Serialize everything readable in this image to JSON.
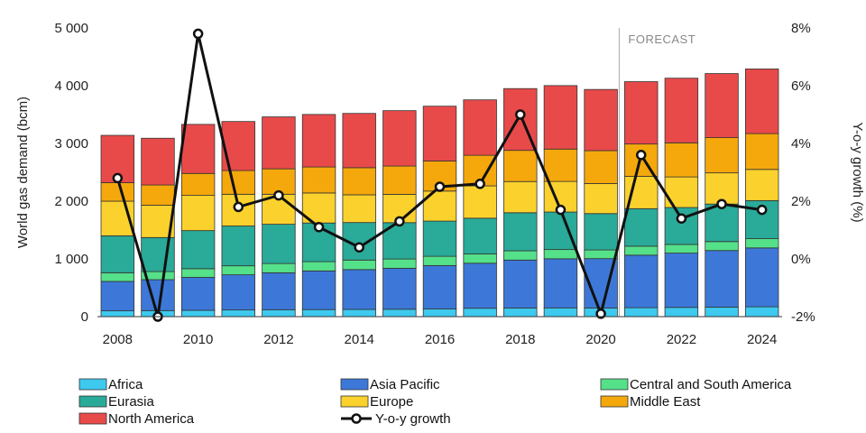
{
  "chart_data": {
    "type": "bar",
    "stacked": true,
    "categories": [
      "2008",
      "2009",
      "2010",
      "2011",
      "2012",
      "2013",
      "2014",
      "2015",
      "2016",
      "2017",
      "2018",
      "2019",
      "2020",
      "2021",
      "2022",
      "2023",
      "2024"
    ],
    "xtick_labels": [
      "2008",
      "2010",
      "2012",
      "2014",
      "2016",
      "2018",
      "2020",
      "2022",
      "2024"
    ],
    "ylabel": "World gas demand (bcm)",
    "y2label": "Y-o-y growth (%)",
    "ylim": [
      0,
      5000
    ],
    "y2lim": [
      -2,
      8
    ],
    "yticks": [
      0,
      1000,
      2000,
      3000,
      4000,
      5000
    ],
    "ytick_labels": [
      "0",
      "1 000",
      "2 000",
      "3 000",
      "4 000",
      "5 000"
    ],
    "y2ticks": [
      -2,
      0,
      2,
      4,
      6,
      8
    ],
    "y2tick_labels": [
      "-2%",
      "0%",
      "2%",
      "4%",
      "6%",
      "8%"
    ],
    "annotation": "FORECAST",
    "forecast_start": "2021",
    "legend_position": "bottom",
    "series": [
      {
        "name": "Africa",
        "color": "#3ec9ee",
        "values": [
          100,
          105,
          110,
          115,
          120,
          122,
          125,
          128,
          135,
          145,
          150,
          152,
          150,
          155,
          160,
          165,
          170
        ]
      },
      {
        "name": "Asia Pacific",
        "color": "#3d78d8",
        "values": [
          510,
          535,
          570,
          610,
          640,
          670,
          690,
          710,
          750,
          780,
          830,
          850,
          855,
          910,
          940,
          980,
          1020
        ]
      },
      {
        "name": "Central and South America",
        "color": "#55e08a",
        "values": [
          150,
          140,
          150,
          155,
          160,
          160,
          165,
          160,
          160,
          160,
          160,
          160,
          150,
          155,
          150,
          155,
          160
        ]
      },
      {
        "name": "Eurasia",
        "color": "#2aaa98",
        "values": [
          640,
          590,
          660,
          690,
          680,
          670,
          650,
          630,
          610,
          620,
          660,
          650,
          630,
          650,
          640,
          650,
          660
        ]
      },
      {
        "name": "Europe",
        "color": "#fbd12d",
        "values": [
          600,
          560,
          610,
          550,
          520,
          520,
          480,
          490,
          520,
          560,
          540,
          530,
          520,
          560,
          530,
          540,
          540
        ]
      },
      {
        "name": "Middle East",
        "color": "#f4a80c",
        "values": [
          320,
          350,
          380,
          410,
          440,
          450,
          470,
          490,
          520,
          530,
          540,
          560,
          570,
          560,
          590,
          610,
          620
        ]
      },
      {
        "name": "North America",
        "color": "#e84a4a",
        "values": [
          820,
          810,
          850,
          850,
          900,
          910,
          940,
          960,
          950,
          960,
          1070,
          1100,
          1060,
          1080,
          1120,
          1110,
          1120
        ]
      }
    ],
    "line": {
      "name": "Y-o-y growth",
      "color": "#111111",
      "axis": "secondary",
      "values": [
        2.8,
        -2.0,
        7.8,
        1.8,
        2.2,
        1.1,
        0.4,
        1.3,
        2.5,
        2.6,
        5.0,
        1.7,
        -1.9,
        3.6,
        1.4,
        1.9,
        1.7
      ]
    }
  }
}
